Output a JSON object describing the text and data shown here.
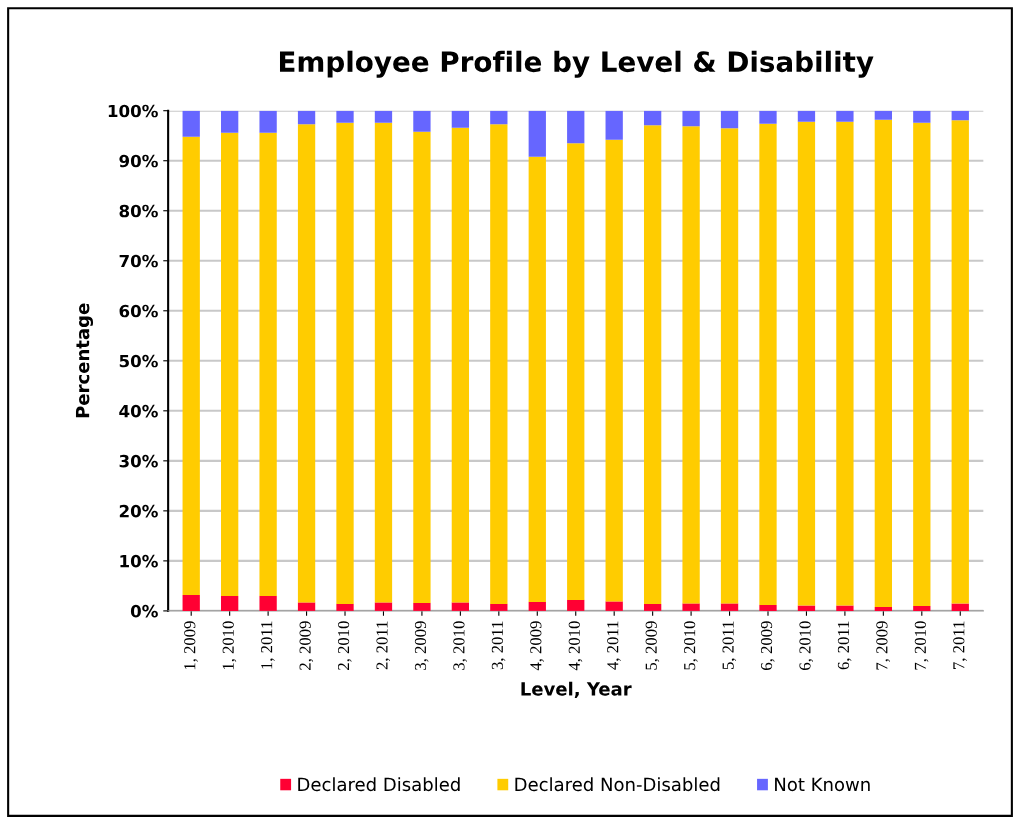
{
  "chart_data": {
    "type": "bar",
    "title": "Employee Profile by Level & Disability",
    "xlabel": "Level, Year",
    "ylabel": "Percentage",
    "categories": [
      "1, 2009",
      "1, 2010",
      "1, 2011",
      "2, 2009",
      "2, 2010",
      "2, 2011",
      "3, 2009",
      "3, 2010",
      "3, 2011",
      "4, 2009",
      "4, 2010",
      "4, 2011",
      "5, 2009",
      "5, 2010",
      "5, 2011",
      "6, 2009",
      "6, 2010",
      "6, 2011",
      "7, 2009",
      "7, 2010",
      "7, 2011"
    ],
    "stacked": true,
    "series": [
      {
        "name": "Declared Disabled",
        "color": "#ff0033",
        "values": [
          3.2,
          3.0,
          3.0,
          1.7,
          1.4,
          1.7,
          1.6,
          1.7,
          1.4,
          1.8,
          2.2,
          1.9,
          1.4,
          1.5,
          1.5,
          1.2,
          1.1,
          1.1,
          0.8,
          1.0,
          1.5
        ]
      },
      {
        "name": "Declared Non-Disabled",
        "color": "#ffcc00",
        "values": [
          91.6,
          92.6,
          92.6,
          95.6,
          96.2,
          95.9,
          94.2,
          94.9,
          95.9,
          89.0,
          91.3,
          92.3,
          95.7,
          95.4,
          95.0,
          96.2,
          96.7,
          96.7,
          97.4,
          96.6,
          96.6
        ]
      },
      {
        "name": "Not Known",
        "color": "#6666ff",
        "values": [
          5.2,
          4.4,
          4.4,
          2.7,
          2.4,
          2.4,
          4.2,
          3.4,
          2.7,
          9.2,
          6.5,
          5.8,
          2.9,
          3.1,
          3.5,
          2.6,
          2.2,
          2.2,
          1.8,
          2.4,
          1.9
        ]
      }
    ],
    "ylim": [
      0,
      100
    ],
    "yticks": [
      {
        "value": 0,
        "label": "0%"
      },
      {
        "value": 10,
        "label": "10%"
      },
      {
        "value": 20,
        "label": "20%"
      },
      {
        "value": 30,
        "label": "30%"
      },
      {
        "value": 40,
        "label": "40%"
      },
      {
        "value": 50,
        "label": "50%"
      },
      {
        "value": 60,
        "label": "60%"
      },
      {
        "value": 70,
        "label": "70%"
      },
      {
        "value": 80,
        "label": "80%"
      },
      {
        "value": 90,
        "label": "90%"
      },
      {
        "value": 100,
        "label": "100%"
      }
    ],
    "grid": "y",
    "legend": "bottom"
  }
}
